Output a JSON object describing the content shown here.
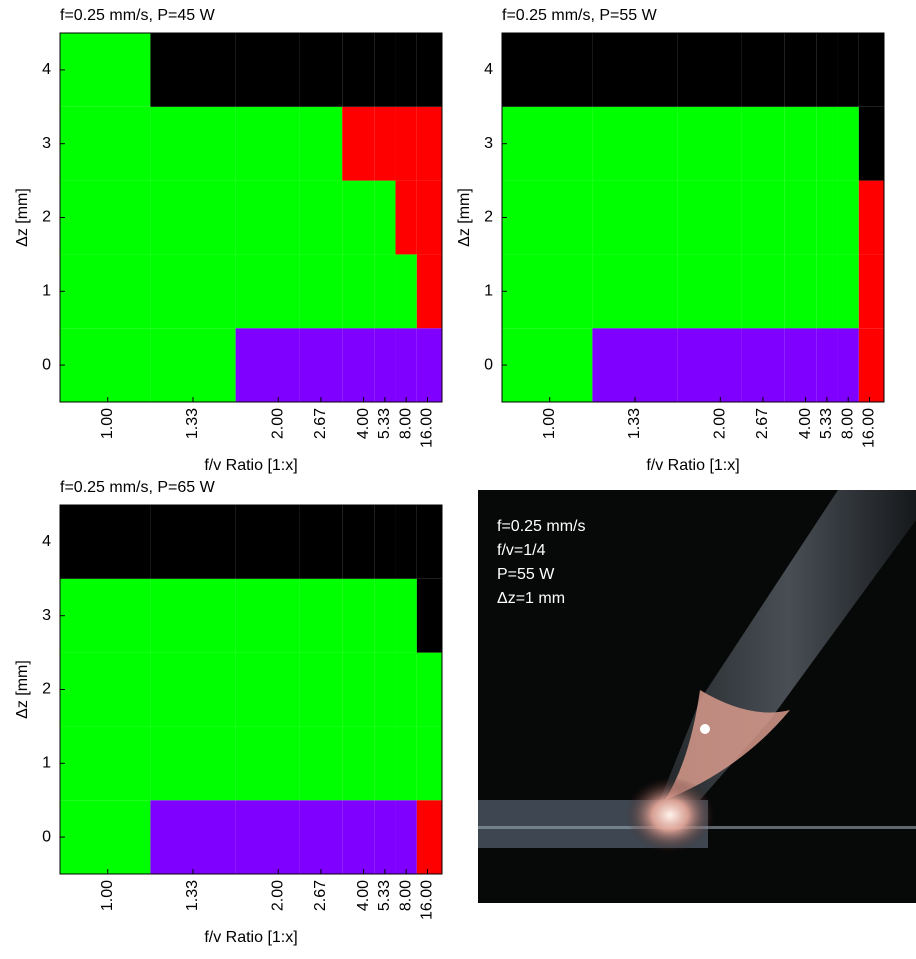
{
  "chart_data": [
    {
      "type": "heatmap",
      "title": "f=0.25 mm/s, P=45 W",
      "x_label": "f/v Ratio [1:x]",
      "y_label": "Δz [mm]",
      "x": [
        1,
        0.75,
        0.5,
        0.375,
        0.25,
        0.1875,
        0.125,
        0.0625
      ],
      "z": [
        0,
        1,
        2,
        3,
        4
      ],
      "states": [
        [
          0,
          0,
          2,
          2,
          2,
          2,
          2,
          2
        ],
        [
          0,
          0,
          0,
          0,
          0,
          0,
          0,
          1
        ],
        [
          0,
          0,
          0,
          0,
          0,
          0,
          1,
          1
        ],
        [
          0,
          0,
          0,
          0,
          1,
          1,
          1,
          1
        ],
        [
          0,
          3,
          3,
          3,
          3,
          3,
          3,
          3
        ]
      ],
      "cmap": [
        "#00ff00",
        "#ff0000",
        "#8000ff",
        "#000000"
      ],
      "xlim": [
        1.14,
        0.02
      ],
      "ylim": [
        -0.5,
        4.5
      ],
      "xticks": [
        {
          "value": 1,
          "label": "1.00"
        },
        {
          "value": 0.75,
          "label": "1.33"
        },
        {
          "value": 0.5,
          "label": "2.00"
        },
        {
          "value": 0.375,
          "label": "2.67"
        },
        {
          "value": 0.25,
          "label": "4.00"
        },
        {
          "value": 0.1875,
          "label": "5.33"
        },
        {
          "value": 0.125,
          "label": "8.00"
        },
        {
          "value": 0.0625,
          "label": "16.00"
        }
      ],
      "yticks": [
        0,
        1,
        2,
        3,
        4
      ]
    },
    {
      "type": "heatmap",
      "title": "f=0.25 mm/s, P=55 W",
      "x_label": "f/v Ratio [1:x]",
      "y_label": "Δz [mm]",
      "x": [
        1,
        0.75,
        0.5,
        0.375,
        0.25,
        0.1875,
        0.125,
        0.0625
      ],
      "z": [
        0,
        1,
        2,
        3,
        4
      ],
      "states": [
        [
          0,
          2,
          2,
          2,
          2,
          2,
          2,
          1
        ],
        [
          0,
          0,
          0,
          0,
          0,
          0,
          0,
          1
        ],
        [
          0,
          0,
          0,
          0,
          0,
          0,
          0,
          1
        ],
        [
          0,
          0,
          0,
          0,
          0,
          0,
          0,
          3
        ],
        [
          3,
          3,
          3,
          3,
          3,
          3,
          3,
          3
        ]
      ],
      "cmap": [
        "#00ff00",
        "#ff0000",
        "#8000ff",
        "#000000"
      ],
      "xlim": [
        1.14,
        0.02
      ],
      "ylim": [
        -0.5,
        4.5
      ],
      "xticks": [
        {
          "value": 1,
          "label": "1.00"
        },
        {
          "value": 0.75,
          "label": "1.33"
        },
        {
          "value": 0.5,
          "label": "2.00"
        },
        {
          "value": 0.375,
          "label": "2.67"
        },
        {
          "value": 0.25,
          "label": "4.00"
        },
        {
          "value": 0.1875,
          "label": "5.33"
        },
        {
          "value": 0.125,
          "label": "8.00"
        },
        {
          "value": 0.0625,
          "label": "16.00"
        }
      ],
      "yticks": [
        0,
        1,
        2,
        3,
        4
      ]
    },
    {
      "type": "heatmap",
      "title": "f=0.25 mm/s, P=65 W",
      "x_label": "f/v Ratio [1:x]",
      "y_label": "Δz [mm]",
      "x": [
        1,
        0.75,
        0.5,
        0.375,
        0.25,
        0.1875,
        0.125,
        0.0625
      ],
      "z": [
        0,
        1,
        2,
        3,
        4
      ],
      "states": [
        [
          0,
          2,
          2,
          2,
          2,
          2,
          2,
          1
        ],
        [
          0,
          0,
          0,
          0,
          0,
          0,
          0,
          0
        ],
        [
          0,
          0,
          0,
          0,
          0,
          0,
          0,
          0
        ],
        [
          0,
          0,
          0,
          0,
          0,
          0,
          0,
          3
        ],
        [
          3,
          3,
          3,
          3,
          3,
          3,
          3,
          3
        ]
      ],
      "cmap": [
        "#00ff00",
        "#ff0000",
        "#8000ff",
        "#000000"
      ],
      "xlim": [
        1.14,
        0.02
      ],
      "ylim": [
        -0.5,
        4.5
      ],
      "xticks": [
        {
          "value": 1,
          "label": "1.00"
        },
        {
          "value": 0.75,
          "label": "1.33"
        },
        {
          "value": 0.5,
          "label": "2.00"
        },
        {
          "value": 0.375,
          "label": "2.67"
        },
        {
          "value": 0.25,
          "label": "4.00"
        },
        {
          "value": 0.1875,
          "label": "5.33"
        },
        {
          "value": 0.125,
          "label": "8.00"
        },
        {
          "value": 0.0625,
          "label": "16.00"
        }
      ],
      "yticks": [
        0,
        1,
        2,
        3,
        4
      ]
    }
  ],
  "photo": {
    "lines": [
      "f=0.25 mm/s",
      "f/v=1/4",
      "P=55 W",
      "Δz=1 mm"
    ]
  }
}
